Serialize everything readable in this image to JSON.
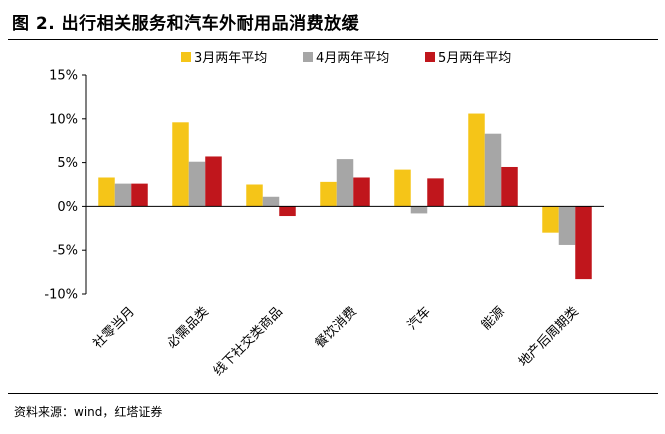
{
  "figure": {
    "title": "图 2. 出行相关服务和汽车外耐用品消费放缓",
    "source": "资料来源：wind，红塔证券"
  },
  "chart_data": {
    "type": "bar",
    "categories": [
      "社零当月",
      "必需品类",
      "线下社交类商品",
      "餐饮消费",
      "汽车",
      "能源",
      "地产后周期类"
    ],
    "series": [
      {
        "name": "3月两年平均",
        "color": "#F5C518",
        "values": [
          3.3,
          9.6,
          2.5,
          2.8,
          4.2,
          10.6,
          -3.0
        ]
      },
      {
        "name": "4月两年平均",
        "color": "#A6A6A6",
        "values": [
          2.6,
          5.1,
          1.1,
          5.4,
          -0.8,
          8.3,
          -4.4
        ]
      },
      {
        "name": "5月两年平均",
        "color": "#C0161C",
        "values": [
          2.6,
          5.7,
          -1.1,
          3.3,
          3.2,
          4.5,
          -8.3
        ]
      }
    ],
    "yticks": [
      "15%",
      "10%",
      "5%",
      "0%",
      "-5%",
      "-10%"
    ],
    "ylim": [
      -10,
      15
    ],
    "legend_position": "top",
    "grid": false
  }
}
